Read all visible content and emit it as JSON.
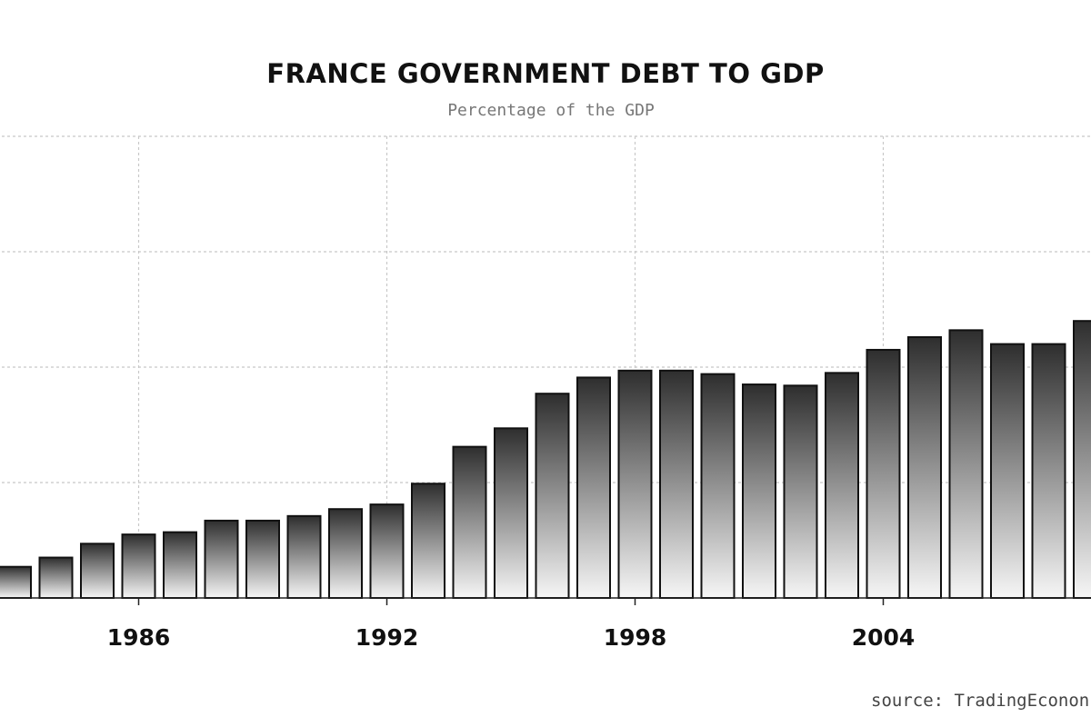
{
  "chart_data": {
    "type": "bar",
    "title": "FRANCE GOVERNMENT DEBT TO GDP",
    "subtitle": "Percentage of the GDP",
    "source": "source: TradingEconon",
    "xlabel": "",
    "ylabel": "",
    "x_ticks": [
      "1986",
      "1992",
      "1998",
      "2004"
    ],
    "categories": [
      "1983",
      "1984",
      "1985",
      "1986",
      "1987",
      "1988",
      "1989",
      "1990",
      "1991",
      "1992",
      "1993",
      "1994",
      "1995",
      "1996",
      "1997",
      "1998",
      "1999",
      "2000",
      "2001",
      "2002",
      "2003",
      "2004",
      "2005",
      "2006",
      "2007",
      "2008",
      "2009"
    ],
    "values": [
      13.5,
      17.5,
      23.5,
      27.5,
      28.5,
      33.5,
      33.5,
      35.5,
      38.5,
      40.5,
      49.5,
      65.5,
      73.5,
      88.5,
      95.5,
      98.5,
      98.5,
      97.0,
      92.5,
      92.0,
      97.5,
      107.5,
      113.0,
      116.0,
      110.0,
      110.0,
      120.0
    ],
    "ylim": [
      0,
      200
    ],
    "grid": true,
    "bar_fill_top": "#2e2e2e",
    "bar_fill_bottom": "#f6f6f6",
    "bar_stroke": "#111111",
    "grid_color": "#c8c8c8"
  }
}
